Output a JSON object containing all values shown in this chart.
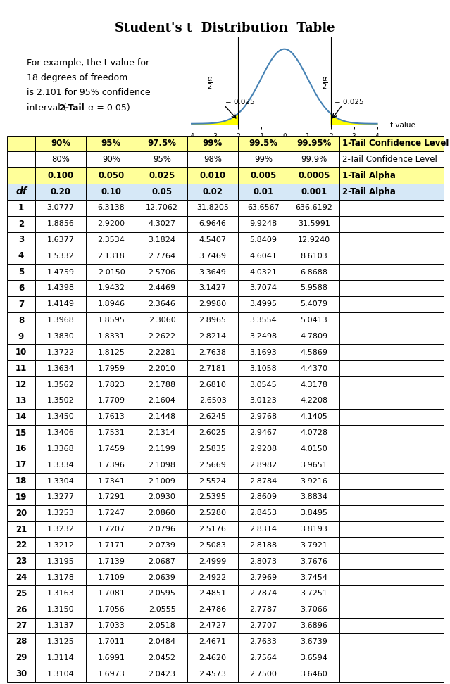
{
  "title": "Student's t  Distribution  Table",
  "header_row1": [
    "90%",
    "95%",
    "97.5%",
    "99%",
    "99.5%",
    "99.95%",
    "1-Tail Confidence Level"
  ],
  "header_row2": [
    "80%",
    "90%",
    "95%",
    "98%",
    "99%",
    "99.9%",
    "2-Tail Confidence Level"
  ],
  "header_row3": [
    "0.100",
    "0.050",
    "0.025",
    "0.010",
    "0.005",
    "0.0005",
    "1-Tail Alpha"
  ],
  "header_row4": [
    "0.20",
    "0.10",
    "0.05",
    "0.02",
    "0.01",
    "0.001",
    "2-Tail Alpha"
  ],
  "df_label": "df",
  "data": [
    [
      1,
      3.0777,
      6.3138,
      12.7062,
      31.8205,
      63.6567,
      636.6192
    ],
    [
      2,
      1.8856,
      2.92,
      4.3027,
      6.9646,
      9.9248,
      31.5991
    ],
    [
      3,
      1.6377,
      2.3534,
      3.1824,
      4.5407,
      5.8409,
      12.924
    ],
    [
      4,
      1.5332,
      2.1318,
      2.7764,
      3.7469,
      4.6041,
      8.6103
    ],
    [
      5,
      1.4759,
      2.015,
      2.5706,
      3.3649,
      4.0321,
      6.8688
    ],
    [
      6,
      1.4398,
      1.9432,
      2.4469,
      3.1427,
      3.7074,
      5.9588
    ],
    [
      7,
      1.4149,
      1.8946,
      2.3646,
      2.998,
      3.4995,
      5.4079
    ],
    [
      8,
      1.3968,
      1.8595,
      2.306,
      2.8965,
      3.3554,
      5.0413
    ],
    [
      9,
      1.383,
      1.8331,
      2.2622,
      2.8214,
      3.2498,
      4.7809
    ],
    [
      10,
      1.3722,
      1.8125,
      2.2281,
      2.7638,
      3.1693,
      4.5869
    ],
    [
      11,
      1.3634,
      1.7959,
      2.201,
      2.7181,
      3.1058,
      4.437
    ],
    [
      12,
      1.3562,
      1.7823,
      2.1788,
      2.681,
      3.0545,
      4.3178
    ],
    [
      13,
      1.3502,
      1.7709,
      2.1604,
      2.6503,
      3.0123,
      4.2208
    ],
    [
      14,
      1.345,
      1.7613,
      2.1448,
      2.6245,
      2.9768,
      4.1405
    ],
    [
      15,
      1.3406,
      1.7531,
      2.1314,
      2.6025,
      2.9467,
      4.0728
    ],
    [
      16,
      1.3368,
      1.7459,
      2.1199,
      2.5835,
      2.9208,
      4.015
    ],
    [
      17,
      1.3334,
      1.7396,
      2.1098,
      2.5669,
      2.8982,
      3.9651
    ],
    [
      18,
      1.3304,
      1.7341,
      2.1009,
      2.5524,
      2.8784,
      3.9216
    ],
    [
      19,
      1.3277,
      1.7291,
      2.093,
      2.5395,
      2.8609,
      3.8834
    ],
    [
      20,
      1.3253,
      1.7247,
      2.086,
      2.528,
      2.8453,
      3.8495
    ],
    [
      21,
      1.3232,
      1.7207,
      2.0796,
      2.5176,
      2.8314,
      3.8193
    ],
    [
      22,
      1.3212,
      1.7171,
      2.0739,
      2.5083,
      2.8188,
      3.7921
    ],
    [
      23,
      1.3195,
      1.7139,
      2.0687,
      2.4999,
      2.8073,
      3.7676
    ],
    [
      24,
      1.3178,
      1.7109,
      2.0639,
      2.4922,
      2.7969,
      3.7454
    ],
    [
      25,
      1.3163,
      1.7081,
      2.0595,
      2.4851,
      2.7874,
      3.7251
    ],
    [
      26,
      1.315,
      1.7056,
      2.0555,
      2.4786,
      2.7787,
      3.7066
    ],
    [
      27,
      1.3137,
      1.7033,
      2.0518,
      2.4727,
      2.7707,
      3.6896
    ],
    [
      28,
      1.3125,
      1.7011,
      2.0484,
      2.4671,
      2.7633,
      3.6739
    ],
    [
      29,
      1.3114,
      1.6991,
      2.0452,
      2.462,
      2.7564,
      3.6594
    ],
    [
      30,
      1.3104,
      1.6973,
      2.0423,
      2.4573,
      2.75,
      3.646
    ]
  ],
  "hdr1_bg": "#FFFF99",
  "hdr2_bg": "#FFFFFF",
  "hdr3_bg": "#FFFF99",
  "hdr4_bg": "#D6E8F7",
  "data_bg": "#FFFFFF",
  "border_color": "#000000"
}
